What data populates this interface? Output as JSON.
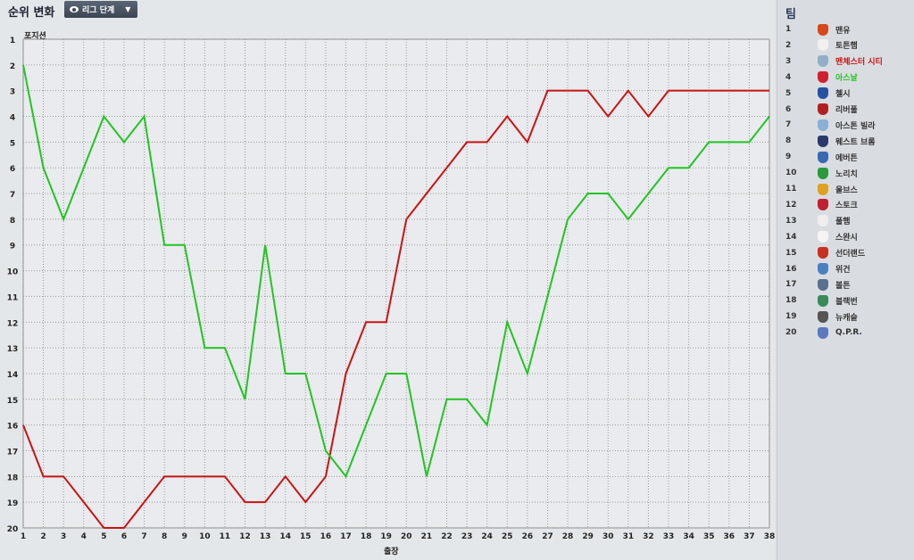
{
  "header": {
    "title": "순위 변화",
    "stage_button": "리그 단계"
  },
  "chart_data": {
    "type": "line",
    "ylabel": "포지션",
    "xlabel": "출장",
    "x": [
      1,
      2,
      3,
      4,
      5,
      6,
      7,
      8,
      9,
      10,
      11,
      12,
      13,
      14,
      15,
      16,
      17,
      18,
      19,
      20,
      21,
      22,
      23,
      24,
      25,
      26,
      27,
      28,
      29,
      30,
      31,
      32,
      33,
      34,
      35,
      36,
      37,
      38
    ],
    "xlim": [
      1,
      38
    ],
    "ylim": [
      1,
      20
    ],
    "y_inverted": true,
    "grid": true,
    "y_ticks": [
      1,
      2,
      3,
      4,
      5,
      6,
      7,
      8,
      9,
      10,
      11,
      12,
      13,
      14,
      15,
      16,
      17,
      18,
      19,
      20
    ],
    "series": [
      {
        "name": "맨체스터 시티",
        "color": "#c81414",
        "values": [
          16,
          18,
          18,
          19,
          20,
          20,
          19,
          18,
          18,
          18,
          18,
          19,
          19,
          18,
          19,
          18,
          14,
          12,
          12,
          8,
          7,
          6,
          5,
          5,
          4,
          5,
          3,
          3,
          3,
          4,
          3,
          4,
          3,
          3,
          3,
          3,
          3,
          3
        ]
      },
      {
        "name": "아스날",
        "color": "#22c422",
        "values": [
          2,
          6,
          8,
          6,
          4,
          5,
          4,
          9,
          9,
          13,
          13,
          15,
          9,
          14,
          14,
          17,
          18,
          16,
          14,
          14,
          18,
          15,
          15,
          16,
          12,
          14,
          11,
          8,
          7,
          7,
          8,
          7,
          6,
          6,
          5,
          5,
          5,
          4
        ]
      }
    ]
  },
  "legend": {
    "title": "팀",
    "teams": [
      {
        "rank": "1",
        "name": "맨유",
        "color": "#333333",
        "crest": "#d4481a"
      },
      {
        "rank": "2",
        "name": "토튼햄",
        "color": "#333333",
        "crest": "#f0f0f0"
      },
      {
        "rank": "3",
        "name": "맨체스터 시티",
        "color": "#c81414",
        "crest": "#8fb0c8"
      },
      {
        "rank": "4",
        "name": "아스날",
        "color": "#22c422",
        "crest": "#d02030"
      },
      {
        "rank": "5",
        "name": "첼시",
        "color": "#333333",
        "crest": "#2850a0"
      },
      {
        "rank": "6",
        "name": "리버풀",
        "color": "#333333",
        "crest": "#b02020"
      },
      {
        "rank": "7",
        "name": "아스톤 빌라",
        "color": "#333333",
        "crest": "#8ab0d8"
      },
      {
        "rank": "8",
        "name": "웨스트 브롬",
        "color": "#333333",
        "crest": "#2a3a6a"
      },
      {
        "rank": "9",
        "name": "에버튼",
        "color": "#333333",
        "crest": "#3a6ab0"
      },
      {
        "rank": "10",
        "name": "노리치",
        "color": "#333333",
        "crest": "#2a9a3a"
      },
      {
        "rank": "11",
        "name": "울브스",
        "color": "#333333",
        "crest": "#e0a020"
      },
      {
        "rank": "12",
        "name": "스토크",
        "color": "#333333",
        "crest": "#c02030"
      },
      {
        "rank": "13",
        "name": "풀햄",
        "color": "#333333",
        "crest": "#eeeeee"
      },
      {
        "rank": "14",
        "name": "스완시",
        "color": "#333333",
        "crest": "#f4f4f4"
      },
      {
        "rank": "15",
        "name": "선더랜드",
        "color": "#333333",
        "crest": "#c83020"
      },
      {
        "rank": "16",
        "name": "위건",
        "color": "#333333",
        "crest": "#4a80c0"
      },
      {
        "rank": "17",
        "name": "볼튼",
        "color": "#333333",
        "crest": "#5a7090"
      },
      {
        "rank": "18",
        "name": "블랙번",
        "color": "#333333",
        "crest": "#3a8a5a"
      },
      {
        "rank": "19",
        "name": "뉴캐슬",
        "color": "#333333",
        "crest": "#555555"
      },
      {
        "rank": "20",
        "name": "Q.P.R.",
        "color": "#333333",
        "crest": "#5a7ac0"
      }
    ]
  }
}
